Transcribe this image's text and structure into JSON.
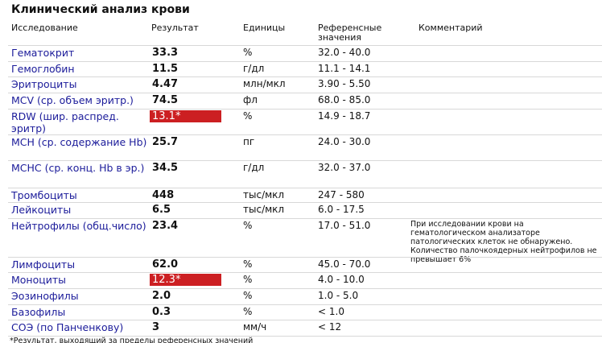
{
  "title": "Клинический анализ крови",
  "table": {
    "headers": [
      "Исследование",
      "Результат",
      "Единицы",
      "Референсные значения",
      "Комментарий"
    ],
    "rows": [
      {
        "name": "Гематокрит",
        "result": "33.3",
        "units": "%",
        "reference": "32.0 - 40.0"
      },
      {
        "name": "Гемоглобин",
        "result": "11.5",
        "units": "г/дл",
        "reference": "11.1 - 14.1"
      },
      {
        "name": "Эритроциты",
        "result": "4.47",
        "units": "млн/мкл",
        "reference": "3.90 - 5.50"
      },
      {
        "name": "MCV (ср. объем эритр.)",
        "result": "74.5",
        "units": "фл",
        "reference": "68.0 - 85.0"
      },
      {
        "name": "RDW (шир. распред. эритр)",
        "result": "13.1*",
        "units": "%",
        "reference": "14.9 - 18.7",
        "flagged": true
      },
      {
        "name": "MCH (ср. содержание Hb)",
        "result": "25.7",
        "units": "пг",
        "reference": "24.0 - 30.0"
      },
      {
        "name": "MCHC (ср. конц. Hb в эр.)",
        "result": "34.5",
        "units": "г/дл",
        "reference": "32.0 - 37.0"
      },
      {
        "name": "Тромбоциты",
        "result": "448",
        "units": "тыс/мкл",
        "reference": "247 - 580"
      },
      {
        "name": "Лейкоциты",
        "result": "6.5",
        "units": "тыс/мкл",
        "reference": "6.0 - 17.5"
      },
      {
        "name": "Нейтрофилы (общ.число)",
        "result": "23.4",
        "units": "%",
        "reference": "17.0 - 51.0",
        "comment": "При исследовании крови на гематологическом анализаторе патологических клеток не обнаружено. Количество палочкоядерных нейтрофилов не превышает 6%"
      },
      {
        "name": "Лимфоциты",
        "result": "62.0",
        "units": "%",
        "reference": "45.0 - 70.0"
      },
      {
        "name": "Моноциты",
        "result": "12.3*",
        "units": "%",
        "reference": "4.0 - 10.0",
        "flagged": true
      },
      {
        "name": "Эозинофилы",
        "result": "2.0",
        "units": "%",
        "reference": "1.0 - 5.0"
      },
      {
        "name": "Базофилы",
        "result": "0.3",
        "units": "%",
        "reference": "< 1.0"
      },
      {
        "name": "СОЭ (по Панченкову)",
        "result": "3",
        "units": "мм/ч",
        "reference": "< 12"
      }
    ]
  },
  "footnote": "*Результат, выходящий за пределы референсных значений"
}
